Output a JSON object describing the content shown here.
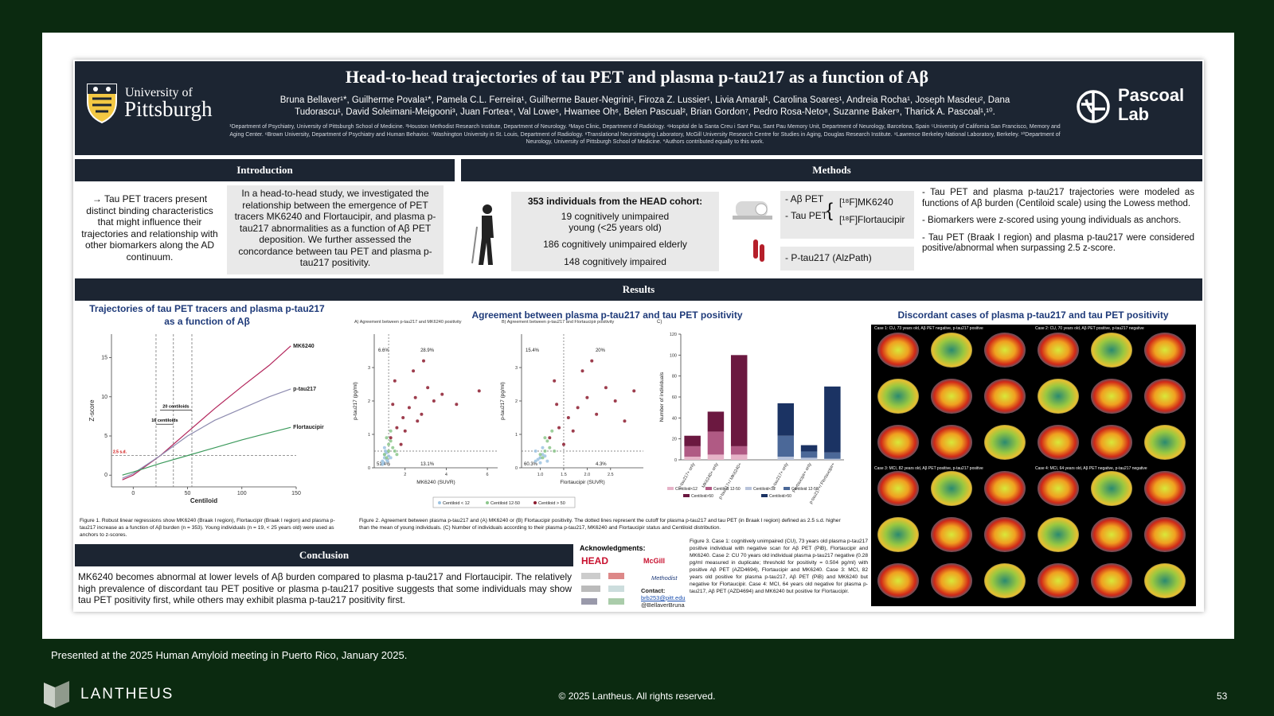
{
  "header": {
    "university_line1": "University of",
    "university_line2": "Pittsburgh",
    "title": "Head-to-head trajectories of tau PET and plasma p-tau217 as a function of Aβ",
    "authors": "Bruna Bellaver¹*, Guilherme Povala¹*, Pamela C.L. Ferreira¹, Guilherme Bauer-Negrini¹, Firoza Z. Lussier¹, Livia Amaral¹, Carolina Soares¹, Andreia Rocha¹, Joseph Masdeu², Dana Tudorascu¹, David Soleimani-Meigooni³, Juan Fortea⁴, Val Lowe⁵, Hwamee Oh⁶, Belen Pascual², Brian Gordon⁷, Pedro Rosa-Neto⁸, Suzanne Baker⁹, Tharick A. Pascoal¹,¹⁰.",
    "affiliations": "¹Department of Psychiatry, University of Pittsburgh School of Medicine. ²Houston Methodist Research Institute, Department of Neurology. ³Mayo Clinic, Department of Radiology. ⁴Hospital de la Santa Creu i Sant Pau, Sant Pau Memory Unit, Department of Neurology, Barcelona, Spain ⁵University of California San Francisco, Memory and Aging Center. ⁶Brown University, Department of Psychiatry and Human Behavior. ⁷Washington University in St. Louis, Department of Radiology. ⁸Translational Neuroimaging Laboratory, McGill University Research Centre for Studies in Aging, Douglas Research Institute. ⁹Lawrence Berkeley National Laboratory, Berkeley. ¹⁰Department of Neurology, University of Pittsburgh School of Medicine. *Authors contributed equally to this work.",
    "lab_line1": "Pascoal",
    "lab_line2": "Lab"
  },
  "introduction": {
    "heading": "Introduction",
    "left": "→ Tau PET tracers present distinct binding characteristics that might influence their trajectories and relationship with other biomarkers along the AD continuum.",
    "right": "In a head-to-head study, we investigated the relationship between the emergence of PET tracers MK6240 and Flortaucipir, and plasma p-tau217 abnormalities as a function of Aβ PET deposition. We further assessed the concordance between tau PET and plasma p-tau217 positivity."
  },
  "methods": {
    "heading": "Methods",
    "cohort": "353 individuals from the HEAD cohort:",
    "groups": [
      "19 cognitively unimpaired young (<25 years old)",
      "186 cognitively unimpaired elderly",
      "148 cognitively impaired"
    ],
    "abeta": "- Aβ PET",
    "tau": "- Tau PET",
    "tracers": [
      "[¹⁸F]MK6240",
      "[¹⁸F]Flortaucipir"
    ],
    "plasma": "- P-tau217 (AlzPath)",
    "bullets": [
      "- Tau PET and plasma p-tau217 trajectories were modeled as functions of Aβ burden (Centiloid scale) using the Lowess method.",
      "- Biomarkers were z-scored using young individuals as anchors.",
      "- Tau PET (Braak I region) and plasma p-tau217 were considered positive/abnormal when surpassing 2.5 z-score."
    ]
  },
  "results": {
    "heading": "Results",
    "fig2_heading": "Agreement between plasma p-tau217 and tau PET positivity",
    "fig3_heading": "Discordant cases of plasma p-tau217 and tau PET positivity",
    "fig1_caption": "Figure 1. Robust linear regressions show MK6240 (Braak I region), Flortaucipir (Braak I region) and plasma p-tau217 increase as a function of Aβ burden (n = 353). Young individuals (n = 19, < 25 years old) were used as anchors to z-scores.",
    "fig2_caption": "Figure 2. Agreement between plasma p-tau217 and (A) MK6240 or (B) Flortaucipir positivity. The dotted lines represent the cutoff for plasma p-tau217 and tau PET (in Braak I region) defined as 2.5 s.d. higher than the mean of young individuals. (C) Number of individuals according to their plasma p-tau217, MK6240 and Flortaucipir status and Centiloid distribution.",
    "fig3_caption": "Figure 3. Case 1: cognitively unimpaired (CU), 73 years old plasma p-tau217 positive individual with negative scan for Aβ PET (PiB), Flortaucipir and MK6240. Case 2: CU 70 years old individual plasma p-tau217 negative (0.28 pg/ml measured in duplicate; threshold for positivity = 0.504 pg/ml) with positive Aβ PET (AZD4694), Flortaucipir and MK6240. Case 3: MCI, 82 years old positive for plasma p-tau217, Aβ PET (PiB) and MK6240 but negative for Flortaucipir. Case 4: MCI, 64 years old negative for plasma p-tau217, Aβ PET (AZD4694) and MK6240 but positive for Flortaucipir.",
    "cases": [
      "Case 1: CU, 73 years old, Aβ PET negative, p-tau217 positive",
      "Case 2: CU, 70 years old, Aβ PET positive, p-tau217 negative",
      "Case 3: MCI, 82 years old, Aβ PET positive, p-tau217 positive",
      "Case 4: MCI, 64 years old, Aβ PET negative, p-tau217 negative"
    ]
  },
  "conclusion": {
    "heading": "Conclusion",
    "text": "MK6240 becomes abnormal at lower levels of Aβ burden compared to plasma p-tau217 and Flortaucipir. The relatively high prevalence of discordant tau PET positive or plasma p-tau217 positive suggests that some individuals may show tau PET positivity first, while others may exhibit plasma p-tau217 positivity first."
  },
  "acknowledgments": {
    "heading": "Acknowledgments:",
    "logos": [
      "HEAD",
      "McGill",
      "Methodist"
    ],
    "contact": "Contact:",
    "email": "brb253@pitt.edu",
    "handle": "@BellaverBruna"
  },
  "footer": {
    "presented": "Presented at the 2025 Human Amyloid meeting in Puerto Rico, January 2025.",
    "brand": "LANTHEUS",
    "copyright": "© 2025 Lantheus. All rights reserved.",
    "page": "53"
  },
  "chart_data": [
    {
      "type": "line",
      "title": "Trajectories of tau PET tracers and plasma p-tau217 as a function of Aβ",
      "x_label": "Centiloid",
      "y_label": "Z-score",
      "x": [
        -10,
        0,
        25,
        50,
        75,
        100,
        125,
        145
      ],
      "xlim": [
        -20,
        150
      ],
      "xticks": [
        0,
        50,
        100,
        150
      ],
      "ylim": [
        -1.5,
        18
      ],
      "yticks": [
        0,
        5,
        10,
        15
      ],
      "reference_x": [
        21,
        37,
        54
      ],
      "threshold": {
        "value": 2.5,
        "label": "2.5 s.d."
      },
      "annotations": [
        "16 centiloids",
        "20 centiloids"
      ],
      "series": [
        {
          "name": "MK6240",
          "color": "#b3265c",
          "values": [
            -0.6,
            0,
            2.5,
            5.5,
            8.5,
            11.3,
            14,
            16.5
          ]
        },
        {
          "name": "p-tau217",
          "color": "#8e8cb0",
          "values": [
            -0.4,
            0.2,
            2.5,
            5,
            7,
            8.5,
            10,
            11
          ]
        },
        {
          "name": "Flortaucipir",
          "color": "#3c9a5c",
          "values": [
            0,
            0.4,
            1.5,
            2.5,
            3.5,
            4.5,
            5.4,
            6.1
          ]
        }
      ]
    },
    {
      "type": "scatter",
      "title": "A) Agreement between p-tau217 and MK6240 positivity",
      "x_label": "MK6240 (SUVR)",
      "y_label": "p-tau217 (pg/ml)",
      "xlim": [
        0.5,
        6.5
      ],
      "xticks": [
        2,
        4,
        6
      ],
      "ylim": [
        0,
        4
      ],
      "yticks": [
        0,
        1,
        2,
        3
      ],
      "x_cutoff": 1.2,
      "y_cutoff": 0.5,
      "quadrant_labels": [
        "6.6%",
        "28.9%",
        "51.4%",
        "13.1%"
      ],
      "series": [
        {
          "name": "Centiloid < 12",
          "color": "#9cc3e2",
          "x": [
            0.9,
            1.0,
            1.1,
            1.0,
            1.2,
            0.95,
            1.05,
            1.15,
            1.3,
            0.9,
            1.1,
            1.0
          ],
          "values": [
            0.2,
            0.3,
            0.25,
            0.4,
            0.35,
            0.15,
            0.5,
            0.2,
            0.3,
            0.1,
            0.45,
            0.6
          ]
        },
        {
          "name": "Centiloid 12-50",
          "color": "#8cc78b",
          "x": [
            1.0,
            1.2,
            1.1,
            1.4,
            1.3,
            1.5,
            1.2,
            1.6,
            1.1,
            1.3
          ],
          "values": [
            0.4,
            0.5,
            0.3,
            0.6,
            0.8,
            0.5,
            0.7,
            0.4,
            0.9,
            1.1
          ]
        },
        {
          "name": "Centiloid > 50",
          "color": "#8c1b2e",
          "x": [
            1.3,
            1.6,
            1.9,
            2.2,
            2.5,
            2.8,
            3.1,
            1.5,
            2.0,
            2.4,
            3.4,
            3.8,
            4.5,
            1.8,
            2.6,
            5.6,
            2.9,
            1.4
          ],
          "values": [
            0.9,
            1.2,
            1.5,
            1.8,
            2.1,
            1.6,
            2.4,
            2.6,
            1.1,
            2.9,
            2.0,
            2.2,
            1.9,
            0.7,
            1.4,
            2.3,
            3.2,
            1.9
          ]
        }
      ]
    },
    {
      "type": "scatter",
      "title": "B) Agreement between p-tau217 and Flortaucipir positivity",
      "x_label": "Flortaucipir (SUVR)",
      "y_label": "p-tau217 (pg/ml)",
      "xlim": [
        0.6,
        3.2
      ],
      "xticks": [
        {
          "value": 1,
          "label": "1.0"
        },
        1.5,
        {
          "value": 2,
          "label": "2.0"
        },
        2.5
      ],
      "ylim": [
        0,
        4
      ],
      "yticks": [
        0,
        1,
        2,
        3
      ],
      "x_cutoff": 1.5,
      "y_cutoff": 0.5,
      "quadrant_labels": [
        "15.4%",
        "20%",
        "60.3%",
        "4.3%"
      ],
      "series": [
        {
          "color": "#9cc3e2",
          "x": [
            0.9,
            1.0,
            0.95,
            1.05,
            1.1,
            1.0,
            0.9,
            1.15,
            1.0,
            1.05
          ],
          "values": [
            0.2,
            0.3,
            0.25,
            0.4,
            0.35,
            0.15,
            0.5,
            0.2,
            0.3,
            0.6
          ]
        },
        {
          "color": "#8cc78b",
          "x": [
            1.0,
            1.1,
            1.05,
            1.2,
            1.15,
            1.3,
            1.1,
            1.25
          ],
          "values": [
            0.4,
            0.5,
            0.3,
            0.6,
            0.8,
            0.5,
            0.9,
            1.1
          ]
        },
        {
          "color": "#8c1b2e",
          "x": [
            1.2,
            1.4,
            1.6,
            1.8,
            2.0,
            2.2,
            2.4,
            1.3,
            1.7,
            1.9,
            2.6,
            2.8,
            1.5,
            2.1,
            3.0,
            1.35
          ],
          "values": [
            0.9,
            1.2,
            1.5,
            1.8,
            2.1,
            1.6,
            2.4,
            2.6,
            1.1,
            2.9,
            2.0,
            1.4,
            0.7,
            3.2,
            2.3,
            1.9
          ]
        }
      ]
    },
    {
      "type": "stacked_bar",
      "title": "C)",
      "y_label": "Number of individuals",
      "ylim": [
        0,
        120
      ],
      "yticks": [
        0,
        20,
        40,
        60,
        80,
        100,
        120
      ],
      "categories": [
        "p-tau217+ only",
        "MK6240+ only",
        "p-tau217+/ MK6240+",
        "p-tau217+ only",
        "Flortaucipir+ only",
        "p-tau217+/ Flortaucipir+"
      ],
      "series": [
        {
          "name": "Centiloid<12",
          "color": "#e6b3c8",
          "values": [
            3,
            5,
            5,
            null,
            null,
            null
          ]
        },
        {
          "name": "Centiloid 12-50",
          "color": "#b05a84",
          "values": [
            10,
            22,
            8,
            null,
            null,
            null
          ]
        },
        {
          "name": "Centiloid>50",
          "color": "#6b1840",
          "values": [
            10,
            19,
            87,
            null,
            null,
            null
          ]
        },
        {
          "name": "Centiloid<12",
          "color": "#b8c3da",
          "values": [
            null,
            null,
            null,
            3,
            2,
            1
          ]
        },
        {
          "name": "Centiloid 12-50",
          "color": "#4b6898",
          "values": [
            null,
            null,
            null,
            20,
            6,
            6
          ]
        },
        {
          "name": "Centiloid>50",
          "color": "#1b3363",
          "values": [
            null,
            null,
            null,
            31,
            6,
            63
          ]
        }
      ]
    }
  ]
}
